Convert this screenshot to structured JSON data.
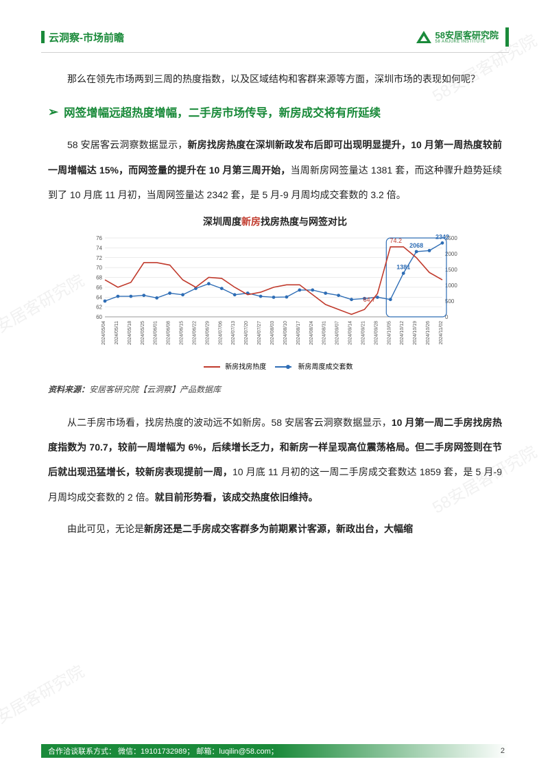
{
  "header": {
    "title": "云洞察-市场前瞻",
    "logo_cn": "58安居客研究院",
    "logo_en": "58 ANJUKE INSTITUTE"
  },
  "watermark_text": "58安居客研究院",
  "intro_para": "那么在领先市场两到三周的热度指数，以及区域结构和客群来源等方面，深圳市场的表现如何呢？",
  "section1_title": "网签增幅远超热度增幅，二手房市场传导，新房成交将有所延续",
  "para1_a": "58 安居客云洞察数据显示，",
  "para1_b": "新房找房热度在深圳新政发布后即可出现明显提升，10 月第一周热度较前一周增幅达 15%，而网签量的提升在 10 月第三周开始，",
  "para1_c": "当周新房网签量达 1381 套，而这种骤升趋势延续到了 10 月底 11 月初，当周网签量达 2342 套，是 5 月-9 月周均成交套数的 3.2 倍。",
  "chart": {
    "type": "dual-axis-line",
    "title_prefix": "深圳周度",
    "title_highlight": "新房",
    "title_suffix": "找房热度与网签对比",
    "x_labels": [
      "2024/05/04",
      "2024/05/11",
      "2024/05/18",
      "2024/05/25",
      "2024/06/01",
      "2024/06/08",
      "2024/06/15",
      "2024/06/22",
      "2024/06/29",
      "2024/07/06",
      "2024/07/13",
      "2024/07/20",
      "2024/07/27",
      "2024/08/03",
      "2024/08/10",
      "2024/08/17",
      "2024/08/24",
      "2024/08/31",
      "2024/09/07",
      "2024/09/14",
      "2024/09/21",
      "2024/09/28",
      "2024/10/05",
      "2024/10/12",
      "2024/10/19",
      "2024/10/26",
      "2024/11/02"
    ],
    "y1_label": "",
    "y1_ticks": [
      60,
      62,
      64,
      66,
      68,
      70,
      72,
      74,
      76
    ],
    "y1_lim": [
      60,
      76
    ],
    "y2_ticks": [
      0,
      500,
      1000,
      1500,
      2000,
      2500
    ],
    "y2_lim": [
      0,
      2500
    ],
    "series1": {
      "name": "新房找房热度",
      "color": "#c0392b",
      "values": [
        67.5,
        66,
        67,
        71,
        71,
        70.5,
        67.5,
        66,
        68,
        67.8,
        66,
        64.5,
        65,
        66,
        66.5,
        66.5,
        64.5,
        62.5,
        61.5,
        60.5,
        61.5,
        64.7,
        74.2,
        74.2,
        72,
        69,
        67.5
      ],
      "labels": {
        "21": "64.7",
        "22": "74.2"
      }
    },
    "series2": {
      "name": "新房周度成交套数",
      "color": "#2e6db5",
      "values": [
        500,
        650,
        650,
        680,
        600,
        750,
        700,
        900,
        1050,
        900,
        700,
        750,
        650,
        620,
        630,
        850,
        850,
        750,
        680,
        550,
        580,
        620,
        550,
        1381,
        2068,
        2100,
        2342
      ],
      "labels": {
        "23": "1381",
        "24": "2068",
        "26": "2342"
      }
    },
    "highlight_box": {
      "start_idx": 22,
      "end_idx": 26,
      "color": "#2e6db5"
    },
    "grid_color": "#d8d8d8",
    "axis_color": "#999999",
    "tick_fontsize": 8
  },
  "source_label": "资料来源：",
  "source_text": "安居客研究院【云洞察】产品数据库",
  "para2_a": "从二手房市场看，找房热度的波动远不如新房。58 安居客云洞察数据显示，",
  "para2_b": "10 月第一周二手房找房热度指数为 70.7，较前一周增幅为 6%，后续增长乏力，和新房一样呈现高位震荡格局。但二手房网签则在节后就出现迅猛增长，较新房表现提前一周，",
  "para2_c": "10 月底 11 月初的这一周二手房成交套数达 1859 套，是 5 月-9 月周均成交套数的 2 倍。",
  "para2_d": "就目前形势看，该成交热度依旧维持。",
  "para3_a": "由此可见，无论是",
  "para3_b": "新房还是二手房成交客群多为前期累计客源，新政出台，大幅缩",
  "footer": {
    "contact": "合作洽谈联系方式：  微信：19101732989；  邮箱：luqilin@58.com；",
    "page": "2"
  }
}
